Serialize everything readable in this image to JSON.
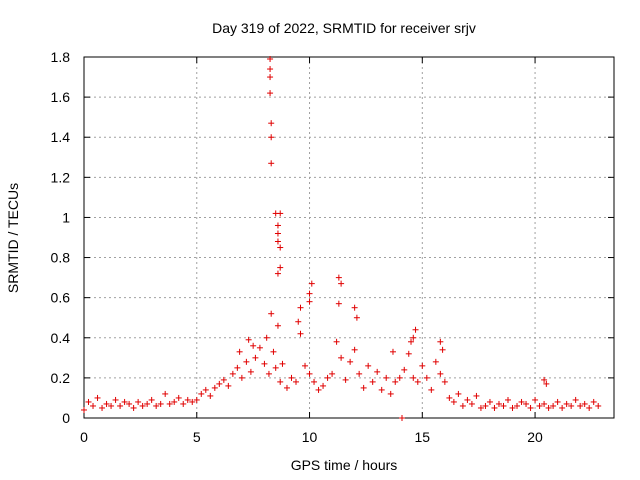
{
  "chart_data": {
    "type": "scatter",
    "title": "Day 319 of 2022, SRMTID for receiver srjv",
    "xlabel": "GPS time / hours",
    "ylabel": "SRMTID / TECUs",
    "xlim": [
      0,
      23.5
    ],
    "ylim": [
      0,
      1.8
    ],
    "x_ticks": [
      0,
      5,
      10,
      15,
      20
    ],
    "y_ticks": [
      0,
      0.2,
      0.4,
      0.6,
      0.8,
      1,
      1.2,
      1.4,
      1.6,
      1.8
    ],
    "x_tick_labels": [
      "0",
      "5",
      "10",
      "15",
      "20"
    ],
    "y_tick_labels": [
      "0",
      "0.2",
      "0.4",
      "0.6",
      "0.8",
      "1",
      "1.2",
      "1.4",
      "1.6",
      "1.8"
    ],
    "grid": true,
    "marker": "+",
    "color": "#e00000",
    "series": [
      {
        "name": "SRMTID",
        "x": [
          0.0,
          0.2,
          0.4,
          0.6,
          0.8,
          1.0,
          1.2,
          1.4,
          1.6,
          1.8,
          2.0,
          2.2,
          2.4,
          2.6,
          2.8,
          3.0,
          3.2,
          3.4,
          3.6,
          3.8,
          4.0,
          4.2,
          4.4,
          4.6,
          4.8,
          5.0,
          5.2,
          5.4,
          5.6,
          5.8,
          6.0,
          6.2,
          6.4,
          6.6,
          6.8,
          7.0,
          7.2,
          7.4,
          7.6,
          7.8,
          8.0,
          8.1,
          8.2,
          8.3,
          8.4,
          8.5,
          8.6,
          8.7,
          8.8,
          9.0,
          9.2,
          9.4,
          9.6,
          9.8,
          10.0,
          10.2,
          10.4,
          10.6,
          10.8,
          11.0,
          11.2,
          11.4,
          11.6,
          11.8,
          12.0,
          12.2,
          12.4,
          12.6,
          12.8,
          13.0,
          13.2,
          13.4,
          13.6,
          13.8,
          14.0,
          14.2,
          14.4,
          14.6,
          14.8,
          15.0,
          15.2,
          15.4,
          15.6,
          15.8,
          16.0,
          16.2,
          16.4,
          16.6,
          16.8,
          17.0,
          17.2,
          17.4,
          17.6,
          17.8,
          18.0,
          18.2,
          18.4,
          18.6,
          18.8,
          19.0,
          19.2,
          19.4,
          19.6,
          19.8,
          20.0,
          20.2,
          20.4,
          20.6,
          20.8,
          21.0,
          21.2,
          21.4,
          21.6,
          21.8,
          22.0,
          22.2,
          22.4,
          22.6,
          22.8,
          8.25,
          8.25,
          8.25,
          8.25,
          8.3,
          8.3,
          8.3,
          8.5,
          8.6,
          8.6,
          8.6,
          8.7,
          8.7,
          8.6,
          8.7,
          10.0,
          10.1,
          10.0,
          11.3,
          11.4,
          11.3,
          12.0,
          12.1,
          14.1,
          14.6,
          14.7,
          14.5,
          13.7,
          15.8,
          15.9,
          20.4,
          20.5,
          9.6,
          9.5,
          7.5,
          7.3,
          6.9
        ],
        "y": [
          0.04,
          0.08,
          0.06,
          0.1,
          0.05,
          0.07,
          0.06,
          0.09,
          0.06,
          0.08,
          0.07,
          0.05,
          0.08,
          0.06,
          0.07,
          0.09,
          0.06,
          0.07,
          0.12,
          0.07,
          0.08,
          0.1,
          0.07,
          0.09,
          0.08,
          0.09,
          0.12,
          0.14,
          0.11,
          0.15,
          0.17,
          0.19,
          0.16,
          0.22,
          0.25,
          0.2,
          0.28,
          0.23,
          0.3,
          0.35,
          0.27,
          0.4,
          0.22,
          0.52,
          0.33,
          0.25,
          0.46,
          0.18,
          0.27,
          0.15,
          0.2,
          0.18,
          0.42,
          0.26,
          0.22,
          0.18,
          0.14,
          0.16,
          0.2,
          0.22,
          0.38,
          0.3,
          0.19,
          0.28,
          0.34,
          0.22,
          0.15,
          0.26,
          0.18,
          0.23,
          0.14,
          0.2,
          0.12,
          0.18,
          0.2,
          0.24,
          0.32,
          0.2,
          0.18,
          0.26,
          0.2,
          0.14,
          0.28,
          0.22,
          0.18,
          0.1,
          0.08,
          0.12,
          0.06,
          0.09,
          0.07,
          0.11,
          0.05,
          0.06,
          0.08,
          0.05,
          0.07,
          0.06,
          0.09,
          0.05,
          0.06,
          0.08,
          0.07,
          0.05,
          0.09,
          0.06,
          0.07,
          0.05,
          0.06,
          0.08,
          0.05,
          0.07,
          0.06,
          0.09,
          0.06,
          0.07,
          0.05,
          0.08,
          0.06,
          1.79,
          1.74,
          1.7,
          1.62,
          1.47,
          1.4,
          1.27,
          1.02,
          0.96,
          0.92,
          0.88,
          1.02,
          0.85,
          0.72,
          0.75,
          0.62,
          0.67,
          0.58,
          0.7,
          0.67,
          0.57,
          0.55,
          0.5,
          0.0,
          0.4,
          0.44,
          0.38,
          0.33,
          0.38,
          0.34,
          0.19,
          0.17,
          0.55,
          0.48,
          0.36,
          0.39,
          0.33
        ]
      }
    ]
  }
}
